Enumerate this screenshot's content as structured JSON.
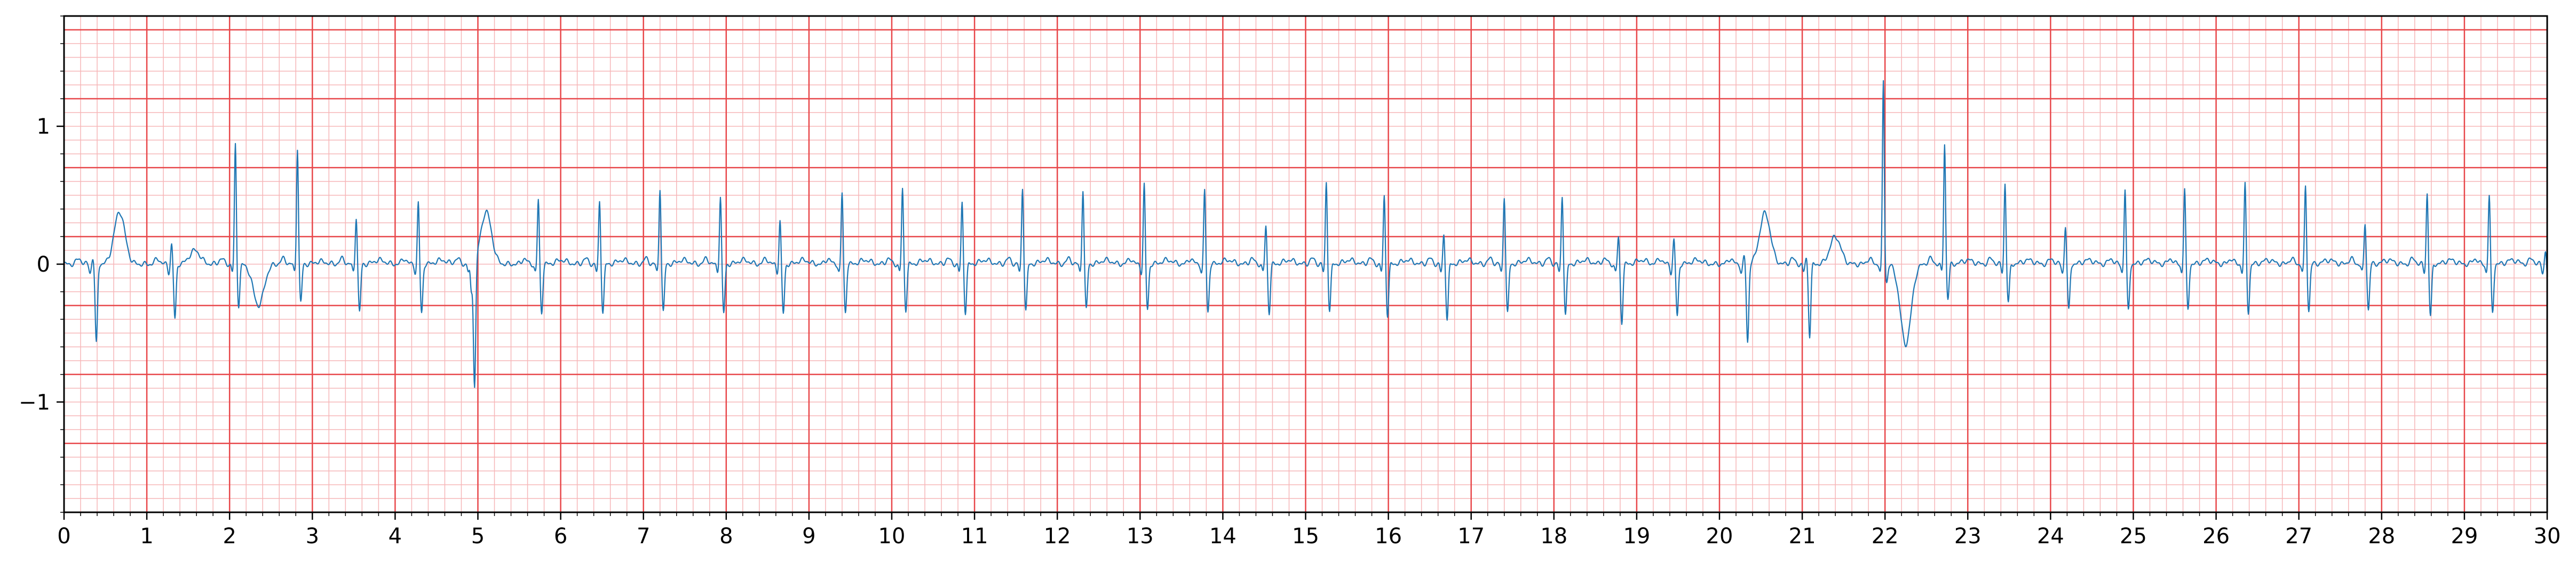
{
  "chart_data": {
    "type": "line",
    "title": "",
    "xlabel": "",
    "ylabel": "",
    "xlim": [
      0,
      30
    ],
    "ylim": [
      -1.8,
      1.8
    ],
    "x_ticks": [
      0,
      1,
      2,
      3,
      4,
      5,
      6,
      7,
      8,
      9,
      10,
      11,
      12,
      13,
      14,
      15,
      16,
      17,
      18,
      19,
      20,
      21,
      22,
      23,
      24,
      25,
      26,
      27,
      28,
      29,
      30
    ],
    "x_tick_labels": [
      "0",
      "1",
      "2",
      "3",
      "4",
      "5",
      "6",
      "7",
      "8",
      "9",
      "10",
      "11",
      "12",
      "13",
      "14",
      "15",
      "16",
      "17",
      "18",
      "19",
      "20",
      "21",
      "22",
      "23",
      "24",
      "25",
      "26",
      "27",
      "28",
      "29",
      "30"
    ],
    "y_ticks": [
      -1,
      0,
      1
    ],
    "y_tick_labels": [
      "−1",
      "0",
      "1"
    ],
    "grid": "on",
    "grid_style": "ECG paper: major lines every 1 s and 0.5 units, minor lines every 0.2 s and 0.1 units",
    "colors": {
      "trace": "#1f77b4",
      "major_grid": "#e8474a",
      "minor_grid": "#f6b6b8",
      "axes": "#000000"
    },
    "series": [
      {
        "name": "",
        "beats": [
          {
            "t": 0.35,
            "r": 0.05,
            "s": -0.58,
            "tw": 0.38,
            "tw_t": 0.67
          },
          {
            "t": 1.3,
            "r": 0.15,
            "s": -0.4,
            "tw": 0.1
          },
          {
            "t": 2.07,
            "r": 0.87,
            "s": -0.3,
            "tw": -0.3
          },
          {
            "t": 2.82,
            "r": 0.85,
            "s": -0.28,
            "tw": 0.02
          },
          {
            "t": 3.53,
            "r": 0.35,
            "s": -0.35,
            "tw": 0.03
          },
          {
            "t": 4.28,
            "r": 0.45,
            "s": -0.36,
            "tw": 0.03
          },
          {
            "t": 4.92,
            "r": -0.2,
            "s": -0.92,
            "tw": 0.38,
            "tw_t": 5.1
          },
          {
            "t": 5.73,
            "r": 0.47,
            "s": -0.35,
            "tw": 0.03
          },
          {
            "t": 6.47,
            "r": 0.46,
            "s": -0.35,
            "tw": 0.03
          },
          {
            "t": 7.2,
            "r": 0.56,
            "s": -0.35,
            "tw": 0.03
          },
          {
            "t": 7.93,
            "r": 0.5,
            "s": -0.36,
            "tw": 0.03
          },
          {
            "t": 8.65,
            "r": 0.32,
            "s": -0.36,
            "tw": 0.03
          },
          {
            "t": 9.4,
            "r": 0.52,
            "s": -0.35,
            "tw": 0.03
          },
          {
            "t": 10.13,
            "r": 0.55,
            "s": -0.33,
            "tw": 0.03
          },
          {
            "t": 10.85,
            "r": 0.45,
            "s": -0.35,
            "tw": 0.03
          },
          {
            "t": 11.58,
            "r": 0.56,
            "s": -0.34,
            "tw": 0.03
          },
          {
            "t": 12.31,
            "r": 0.55,
            "s": -0.33,
            "tw": 0.03
          },
          {
            "t": 13.05,
            "r": 0.58,
            "s": -0.33,
            "tw": 0.03
          },
          {
            "t": 13.78,
            "r": 0.54,
            "s": -0.35,
            "tw": 0.03
          },
          {
            "t": 14.52,
            "r": 0.28,
            "s": -0.35,
            "tw": 0.03
          },
          {
            "t": 15.25,
            "r": 0.6,
            "s": -0.34,
            "tw": 0.03
          },
          {
            "t": 15.95,
            "r": 0.5,
            "s": -0.37,
            "tw": 0.03
          },
          {
            "t": 16.67,
            "r": 0.22,
            "s": -0.4,
            "tw": 0.03
          },
          {
            "t": 17.4,
            "r": 0.5,
            "s": -0.36,
            "tw": 0.03
          },
          {
            "t": 18.1,
            "r": 0.5,
            "s": -0.37,
            "tw": 0.03
          },
          {
            "t": 18.78,
            "r": 0.2,
            "s": -0.42,
            "tw": 0.03
          },
          {
            "t": 19.45,
            "r": 0.18,
            "s": -0.38,
            "tw": 0.03
          },
          {
            "t": 20.3,
            "r": 0.06,
            "s": -0.57,
            "tw": 0.37,
            "tw_t": 20.55
          },
          {
            "t": 21.05,
            "r": 0.05,
            "s": -0.52,
            "tw": 0.2,
            "tw_t": 21.4
          },
          {
            "t": 21.98,
            "r": 1.33,
            "s": -0.13,
            "tw": -0.58,
            "tw_t": 22.25
          },
          {
            "t": 22.72,
            "r": 0.88,
            "s": -0.25,
            "tw": 0.03
          },
          {
            "t": 23.45,
            "r": 0.59,
            "s": -0.28,
            "tw": 0.03
          },
          {
            "t": 24.18,
            "r": 0.28,
            "s": -0.34,
            "tw": 0.03
          },
          {
            "t": 24.9,
            "r": 0.55,
            "s": -0.34,
            "tw": 0.03
          },
          {
            "t": 25.62,
            "r": 0.55,
            "s": -0.33,
            "tw": 0.03
          },
          {
            "t": 26.35,
            "r": 0.58,
            "s": -0.35,
            "tw": 0.03
          },
          {
            "t": 27.08,
            "r": 0.57,
            "s": -0.34,
            "tw": 0.03
          },
          {
            "t": 27.8,
            "r": 0.3,
            "s": -0.33,
            "tw": 0.03
          },
          {
            "t": 28.55,
            "r": 0.52,
            "s": -0.38,
            "tw": 0.03
          },
          {
            "t": 29.3,
            "r": 0.5,
            "s": -0.35,
            "tw": 0.03
          },
          {
            "t": 29.98,
            "r": 0.1,
            "s": -0.3,
            "tw": 0.0
          }
        ]
      }
    ]
  }
}
